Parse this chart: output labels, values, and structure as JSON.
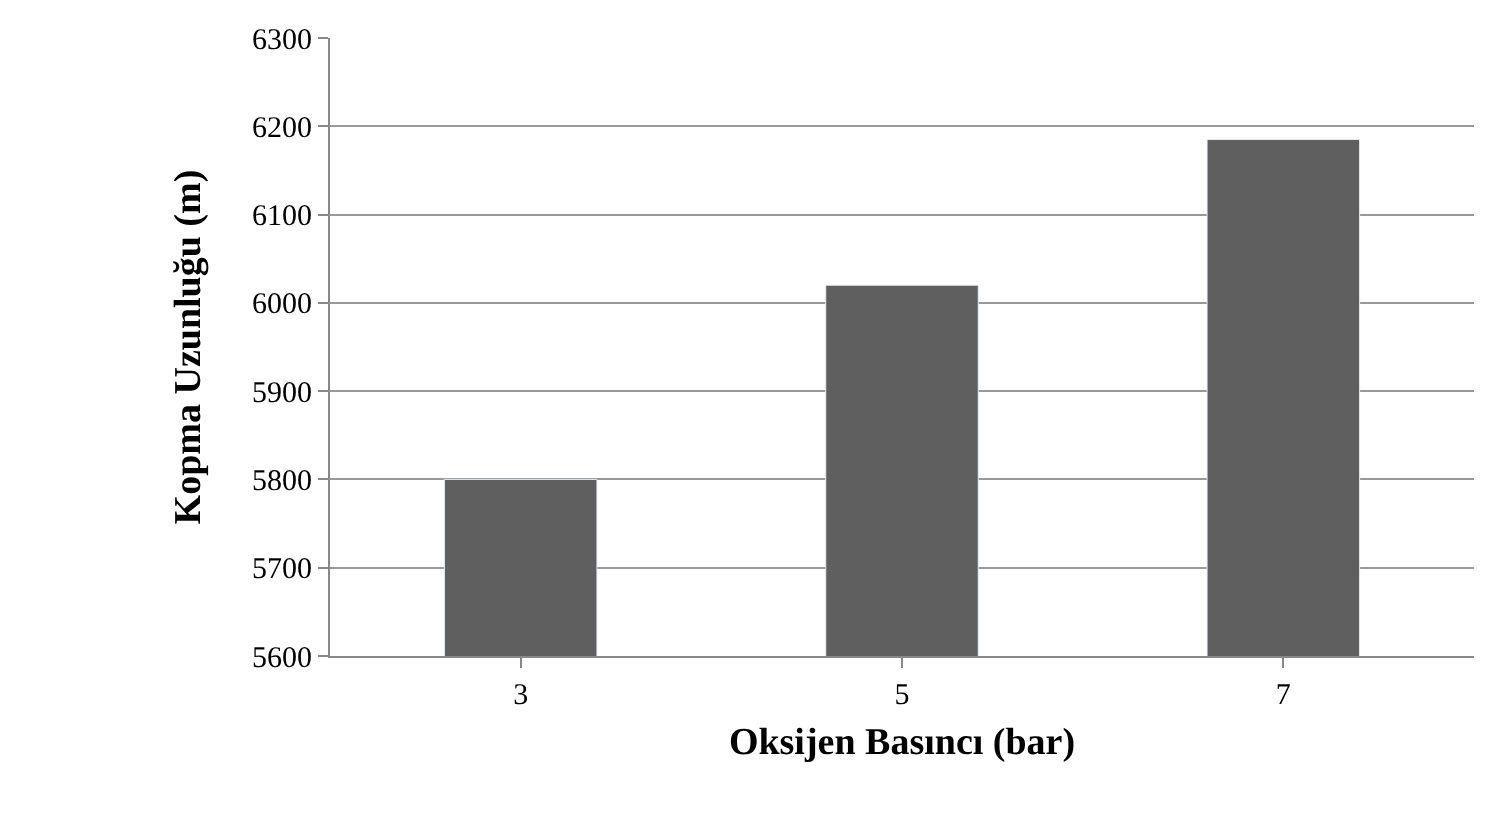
{
  "chart_data": {
    "type": "bar",
    "xlabel": "Oksijen Basıncı (bar)",
    "ylabel": "Kopma Uzunluğu (m)",
    "categories": [
      "3",
      "5",
      "7"
    ],
    "values": [
      5800,
      6020,
      6185
    ],
    "color": "#5f5f5f",
    "ylim": [
      5600,
      6300
    ],
    "yticks": [
      5600,
      5700,
      5800,
      5900,
      6000,
      6100,
      6200,
      6300
    ],
    "grid": "y",
    "legend": false
  }
}
